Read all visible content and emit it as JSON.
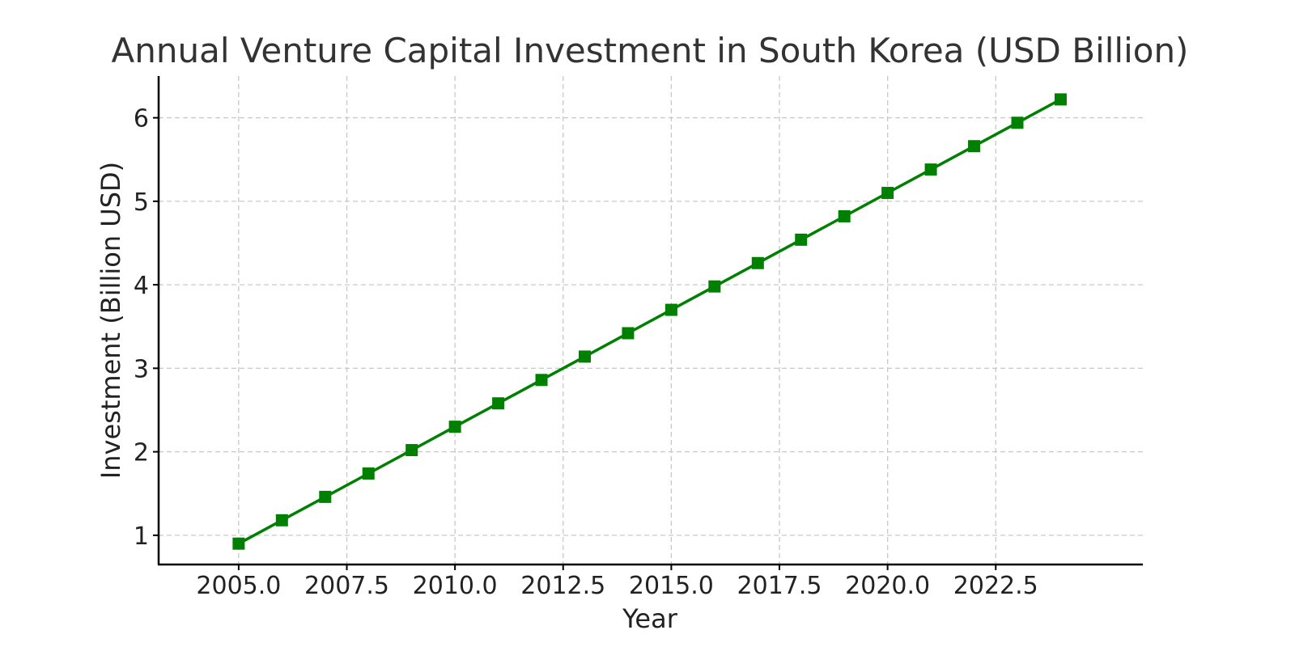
{
  "chart_data": {
    "type": "line",
    "title": "Annual Venture Capital Investment in South Korea (USD Billion)",
    "xlabel": "Year",
    "ylabel": "Investment (Billion USD)",
    "xlim": [
      2003.15,
      2025.9
    ],
    "ylim": [
      0.65,
      6.5
    ],
    "x_ticks": [
      2005,
      2007.5,
      2010,
      2012.5,
      2015,
      2017.5,
      2020,
      2022.5
    ],
    "x_tick_labels": [
      "2005.0",
      "2007.5",
      "2010.0",
      "2012.5",
      "2015.0",
      "2017.5",
      "2020.0",
      "2022.5"
    ],
    "y_ticks": [
      1,
      2,
      3,
      4,
      5,
      6
    ],
    "y_tick_labels": [
      "1",
      "2",
      "3",
      "4",
      "5",
      "6"
    ],
    "grid": true,
    "legend": false,
    "series": [
      {
        "color": "#008000",
        "marker": "square",
        "x": [
          2005,
          2006,
          2007,
          2008,
          2009,
          2010,
          2011,
          2012,
          2013,
          2014,
          2015,
          2016,
          2017,
          2018,
          2019,
          2020,
          2021,
          2022,
          2023,
          2024
        ],
        "values": [
          0.9,
          1.18,
          1.46,
          1.74,
          2.02,
          2.3,
          2.58,
          2.86,
          3.14,
          3.42,
          3.7,
          3.98,
          4.26,
          4.54,
          4.82,
          5.1,
          5.38,
          5.66,
          5.94,
          6.22
        ]
      }
    ]
  }
}
